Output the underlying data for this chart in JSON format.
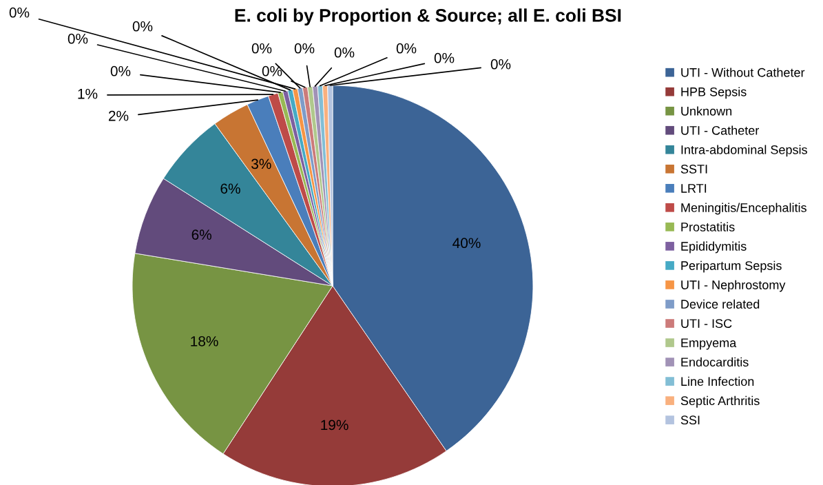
{
  "chart_data": {
    "type": "pie",
    "title": "E. coli by Proportion & Source; all E. coli BSI",
    "categories": [
      "UTI - Without Catheter",
      "HPB Sepsis",
      "Unknown",
      "UTI - Catheter",
      "Intra-abdominal Sepsis",
      "SSTI",
      "LRTI",
      "Meningitis/Encephalitis",
      "Prostatitis",
      "Epididymitis",
      "Peripartum Sepsis",
      "UTI - Nephrostomy",
      "Device related",
      "UTI - ISC",
      "Empyema",
      "Endocarditis",
      "Line Infection",
      "Septic Arthritis",
      "SSI"
    ],
    "values": [
      40.4,
      18.8,
      18.4,
      6.4,
      6.0,
      3.0,
      1.8,
      0.8,
      0.4,
      0.4,
      0.4,
      0.4,
      0.4,
      0.4,
      0.4,
      0.4,
      0.4,
      0.4,
      0.4
    ],
    "value_labels": [
      "40%",
      "19%",
      "18%",
      "6%",
      "6%",
      "3%",
      "2%",
      "1%",
      "0%",
      "0%",
      "0%",
      "0%",
      "0%",
      "0%",
      "0%",
      "0%",
      "0%",
      "0%",
      "0%"
    ],
    "colors": [
      "#3c6496",
      "#953b39",
      "#779443",
      "#624b7c",
      "#348599",
      "#c87533",
      "#4a7ebb",
      "#be4b48",
      "#98b954",
      "#7d60a0",
      "#46aac5",
      "#f69545",
      "#7e9cc8",
      "#cc7b7a",
      "#b0c88c",
      "#a192b6",
      "#82bed5",
      "#f9b07e",
      "#b3c3df"
    ],
    "legend": "right"
  }
}
